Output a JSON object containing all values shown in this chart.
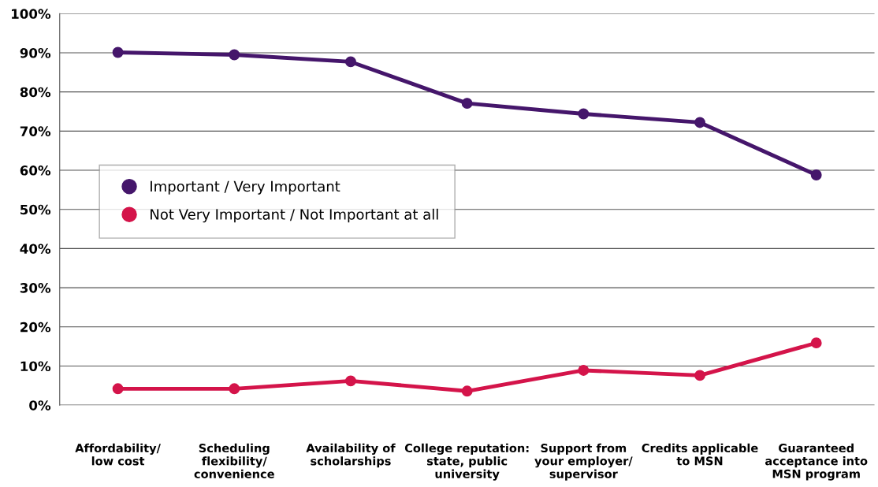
{
  "chart_data": {
    "type": "line",
    "categories": [
      "Affordability/\nlow cost",
      "Scheduling\nflexibility/\nconvenience",
      "Availability of\nscholarships",
      "College reputation:\nstate, public\nuniversity",
      "Support from\nyour employer/\nsupervisor",
      "Credits applicable\nto MSN",
      "Guaranteed\nacceptance into\nMSN program"
    ],
    "series": [
      {
        "name": "Important / Very Important",
        "color": "#45166b",
        "values": [
          90.1,
          89.5,
          87.7,
          77.1,
          74.4,
          72.2,
          58.8
        ]
      },
      {
        "name": "Not Very Important / Not Important at all",
        "color": "#d4144a",
        "values": [
          4.2,
          4.2,
          6.2,
          3.6,
          8.9,
          7.6,
          15.9
        ]
      }
    ],
    "ylim": [
      0,
      100
    ],
    "yticks": [
      {
        "value": 0,
        "label": "0%"
      },
      {
        "value": 10,
        "label": "10%"
      },
      {
        "value": 20,
        "label": "20%"
      },
      {
        "value": 30,
        "label": "30%"
      },
      {
        "value": 40,
        "label": "40%"
      },
      {
        "value": 50,
        "label": "50%"
      },
      {
        "value": 60,
        "label": "60%"
      },
      {
        "value": 70,
        "label": "70%"
      },
      {
        "value": 80,
        "label": "80%"
      },
      {
        "value": 90,
        "label": "90%"
      },
      {
        "value": 100,
        "label": "100%"
      }
    ],
    "grid": "y",
    "legend": "center left",
    "marker": "circle",
    "line_style": "solid"
  }
}
